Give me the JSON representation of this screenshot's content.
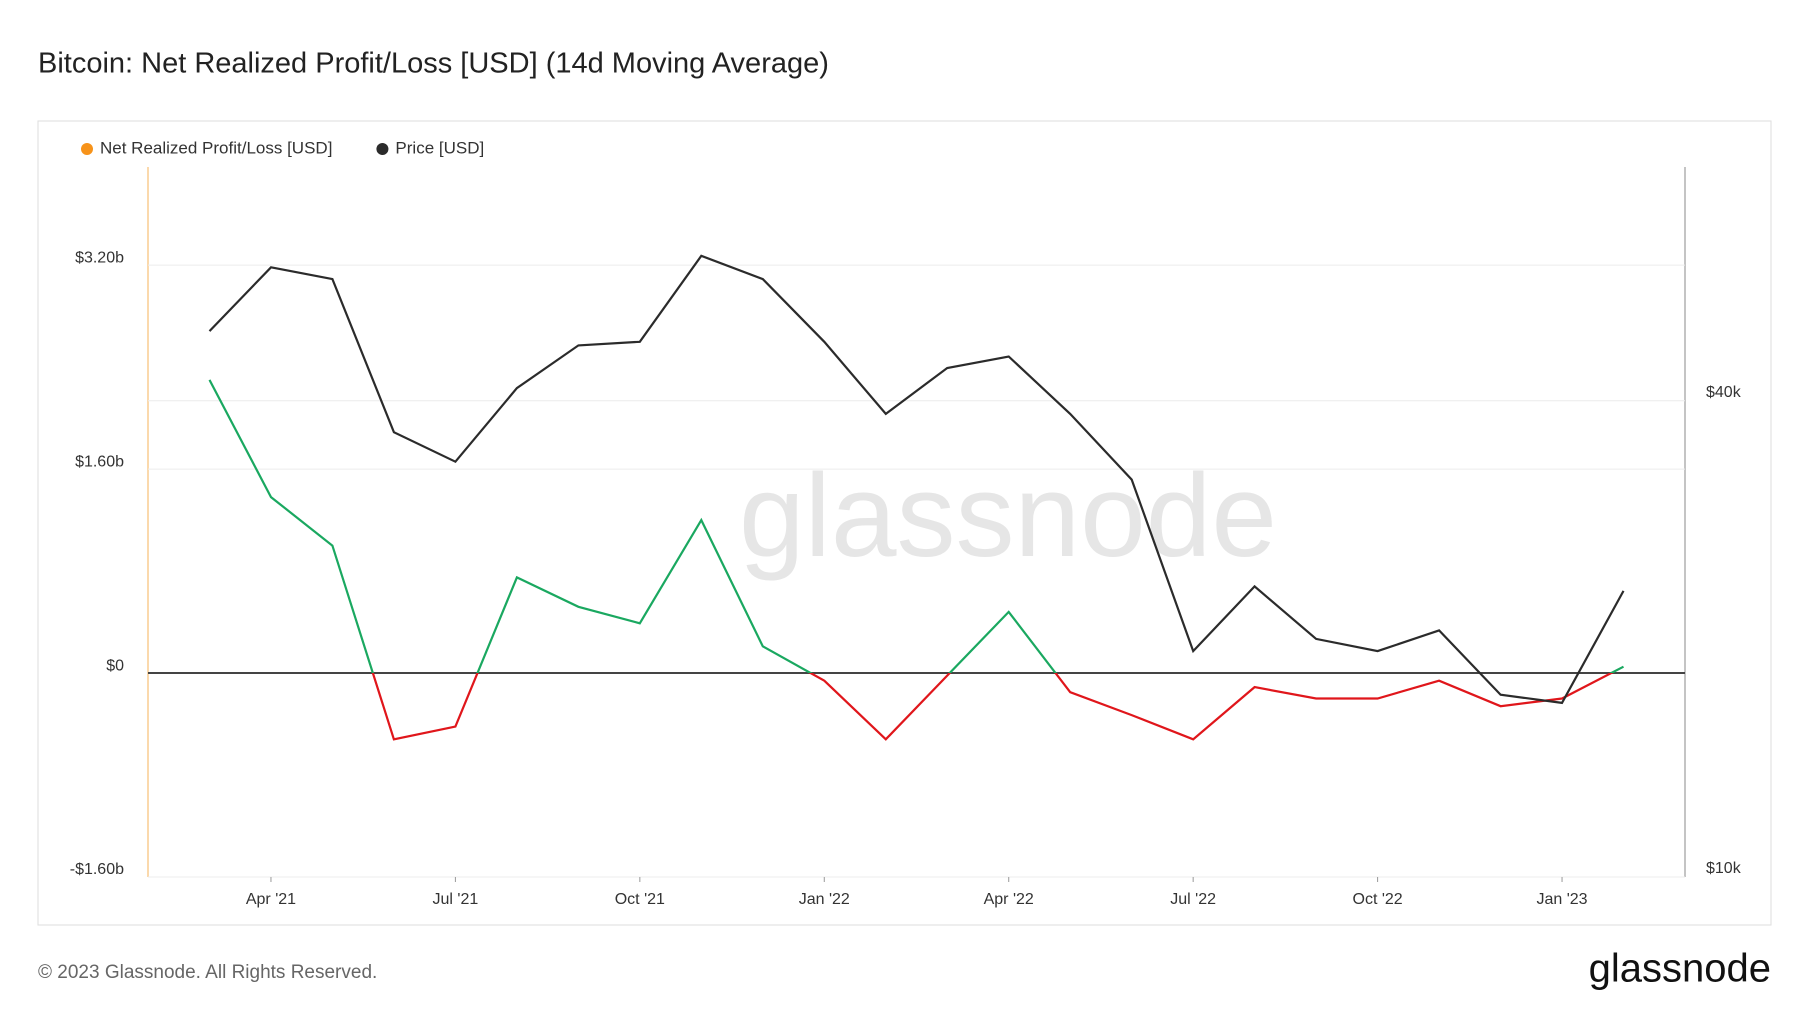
{
  "chart_data": {
    "type": "line",
    "title": "Bitcoin: Net Realized Profit/Loss [USD] (14d Moving Average)",
    "watermark": "glassnode",
    "x": [
      "2021-03",
      "2021-04",
      "2021-05",
      "2021-06",
      "2021-07",
      "2021-08",
      "2021-09",
      "2021-10",
      "2021-11",
      "2021-12",
      "2022-01",
      "2022-02",
      "2022-03",
      "2022-04",
      "2022-05",
      "2022-06",
      "2022-07",
      "2022-08",
      "2022-09",
      "2022-10",
      "2022-11",
      "2022-12",
      "2023-01",
      "2023-02"
    ],
    "xlim": [
      "2021-02",
      "2023-03"
    ],
    "xticks": [
      {
        "value": "2021-04",
        "label": "Apr '21"
      },
      {
        "value": "2021-07",
        "label": "Jul '21"
      },
      {
        "value": "2021-10",
        "label": "Oct '21"
      },
      {
        "value": "2022-01",
        "label": "Jan '22"
      },
      {
        "value": "2022-04",
        "label": "Apr '22"
      },
      {
        "value": "2022-07",
        "label": "Jul '22"
      },
      {
        "value": "2022-10",
        "label": "Oct '22"
      },
      {
        "value": "2023-01",
        "label": "Jan '23"
      }
    ],
    "ylim": [
      -1600000000,
      3970000000
    ],
    "yticks": [
      {
        "value": -1600000000,
        "label": "-$1.60b"
      },
      {
        "value": 0,
        "label": "$0"
      },
      {
        "value": 1600000000,
        "label": "$1.60b"
      },
      {
        "value": 3200000000,
        "label": "$3.20b"
      }
    ],
    "y2lim": [
      10000,
      79000
    ],
    "y2ticks": [
      {
        "value": 10000,
        "label": "$10k"
      },
      {
        "value": 40000,
        "label": "$40k"
      }
    ],
    "y2_log": true,
    "grid": true,
    "series": [
      {
        "name": "Net Realized Profit/Loss [USD]",
        "color": "#f7931a",
        "positive_color": "#1aa860",
        "negative_color": "#e0161b",
        "values": [
          2300000000,
          1380000000,
          1000000000,
          -520000000,
          -420000000,
          750000000,
          520000000,
          390000000,
          1200000000,
          210000000,
          -60000000,
          -520000000,
          -20000000,
          480000000,
          -150000000,
          -330000000,
          -520000000,
          -110000000,
          -200000000,
          -200000000,
          -60000000,
          -260000000,
          -200000000,
          50000000
        ]
      },
      {
        "name": "Price [USD]",
        "color": "#2b2b2b",
        "axis": "y2",
        "values": [
          49000,
          59000,
          57000,
          36500,
          33500,
          41500,
          47000,
          47500,
          61000,
          57000,
          47500,
          38500,
          44000,
          45500,
          38500,
          31800,
          19300,
          23300,
          20000,
          19300,
          20500,
          17000,
          16600,
          23000
        ]
      }
    ]
  },
  "footer": {
    "copyright": "© 2023 Glassnode. All Rights Reserved.",
    "logo": "glassnode"
  }
}
